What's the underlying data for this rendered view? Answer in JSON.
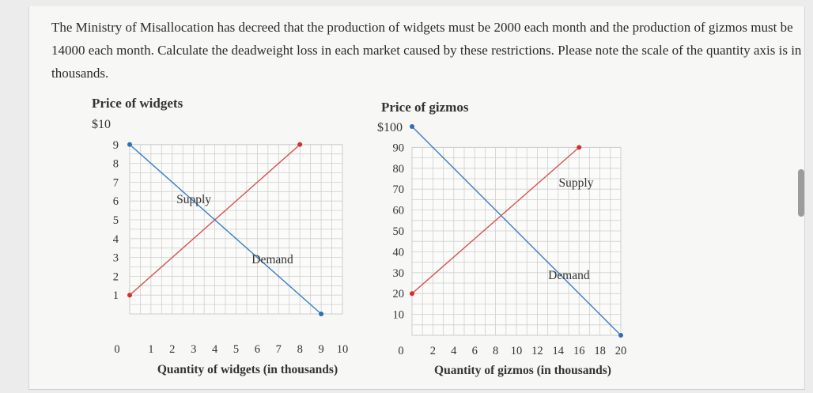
{
  "question": {
    "text": "The Ministry of Misallocation has decreed that the production of widgets must be 2000 each month and the production of gizmos must be 14000 each month. Calculate the deadweight loss in each market caused by these restrictions. Please note the scale of the quantity axis is in thousands."
  },
  "colors": {
    "supply": "#d9534f",
    "demand": "#3a7fc2",
    "supply_point": "#d0312d",
    "demand_point": "#2f6fb5",
    "grid": "#cfcfcf"
  },
  "chart_data": [
    {
      "type": "line",
      "title": "Price of widgets",
      "ytop_label": "$10",
      "xlabel": "Quantity of widgets (in thousands)",
      "xlim": [
        0,
        10
      ],
      "ylim": [
        0,
        10
      ],
      "x_ticks": [
        "0",
        "1",
        "2",
        "3",
        "4",
        "5",
        "6",
        "7",
        "8",
        "9",
        "10"
      ],
      "y_ticks": [
        "1",
        "2",
        "3",
        "4",
        "5",
        "6",
        "7",
        "8",
        "9"
      ],
      "grid": true,
      "series": [
        {
          "name": "Supply",
          "kind": "supply",
          "x": [
            0,
            8
          ],
          "y": [
            1,
            9
          ]
        },
        {
          "name": "Demand",
          "kind": "demand",
          "x": [
            0,
            9
          ],
          "y": [
            9,
            0
          ]
        }
      ]
    },
    {
      "type": "line",
      "title": "Price of gizmos",
      "ytop_label": "$100",
      "xlabel": "Quantity of gizmos (in thousands)",
      "xlim": [
        0,
        20
      ],
      "ylim": [
        0,
        100
      ],
      "x_ticks": [
        "0",
        "2",
        "4",
        "6",
        "8",
        "10",
        "12",
        "14",
        "16",
        "18",
        "20"
      ],
      "y_ticks": [
        "10",
        "20",
        "30",
        "40",
        "50",
        "60",
        "70",
        "80",
        "90"
      ],
      "grid": true,
      "series": [
        {
          "name": "Supply",
          "kind": "supply",
          "x": [
            0,
            16
          ],
          "y": [
            20,
            90
          ]
        },
        {
          "name": "Demand",
          "kind": "demand",
          "x": [
            0,
            20
          ],
          "y": [
            100,
            0
          ]
        }
      ]
    }
  ]
}
